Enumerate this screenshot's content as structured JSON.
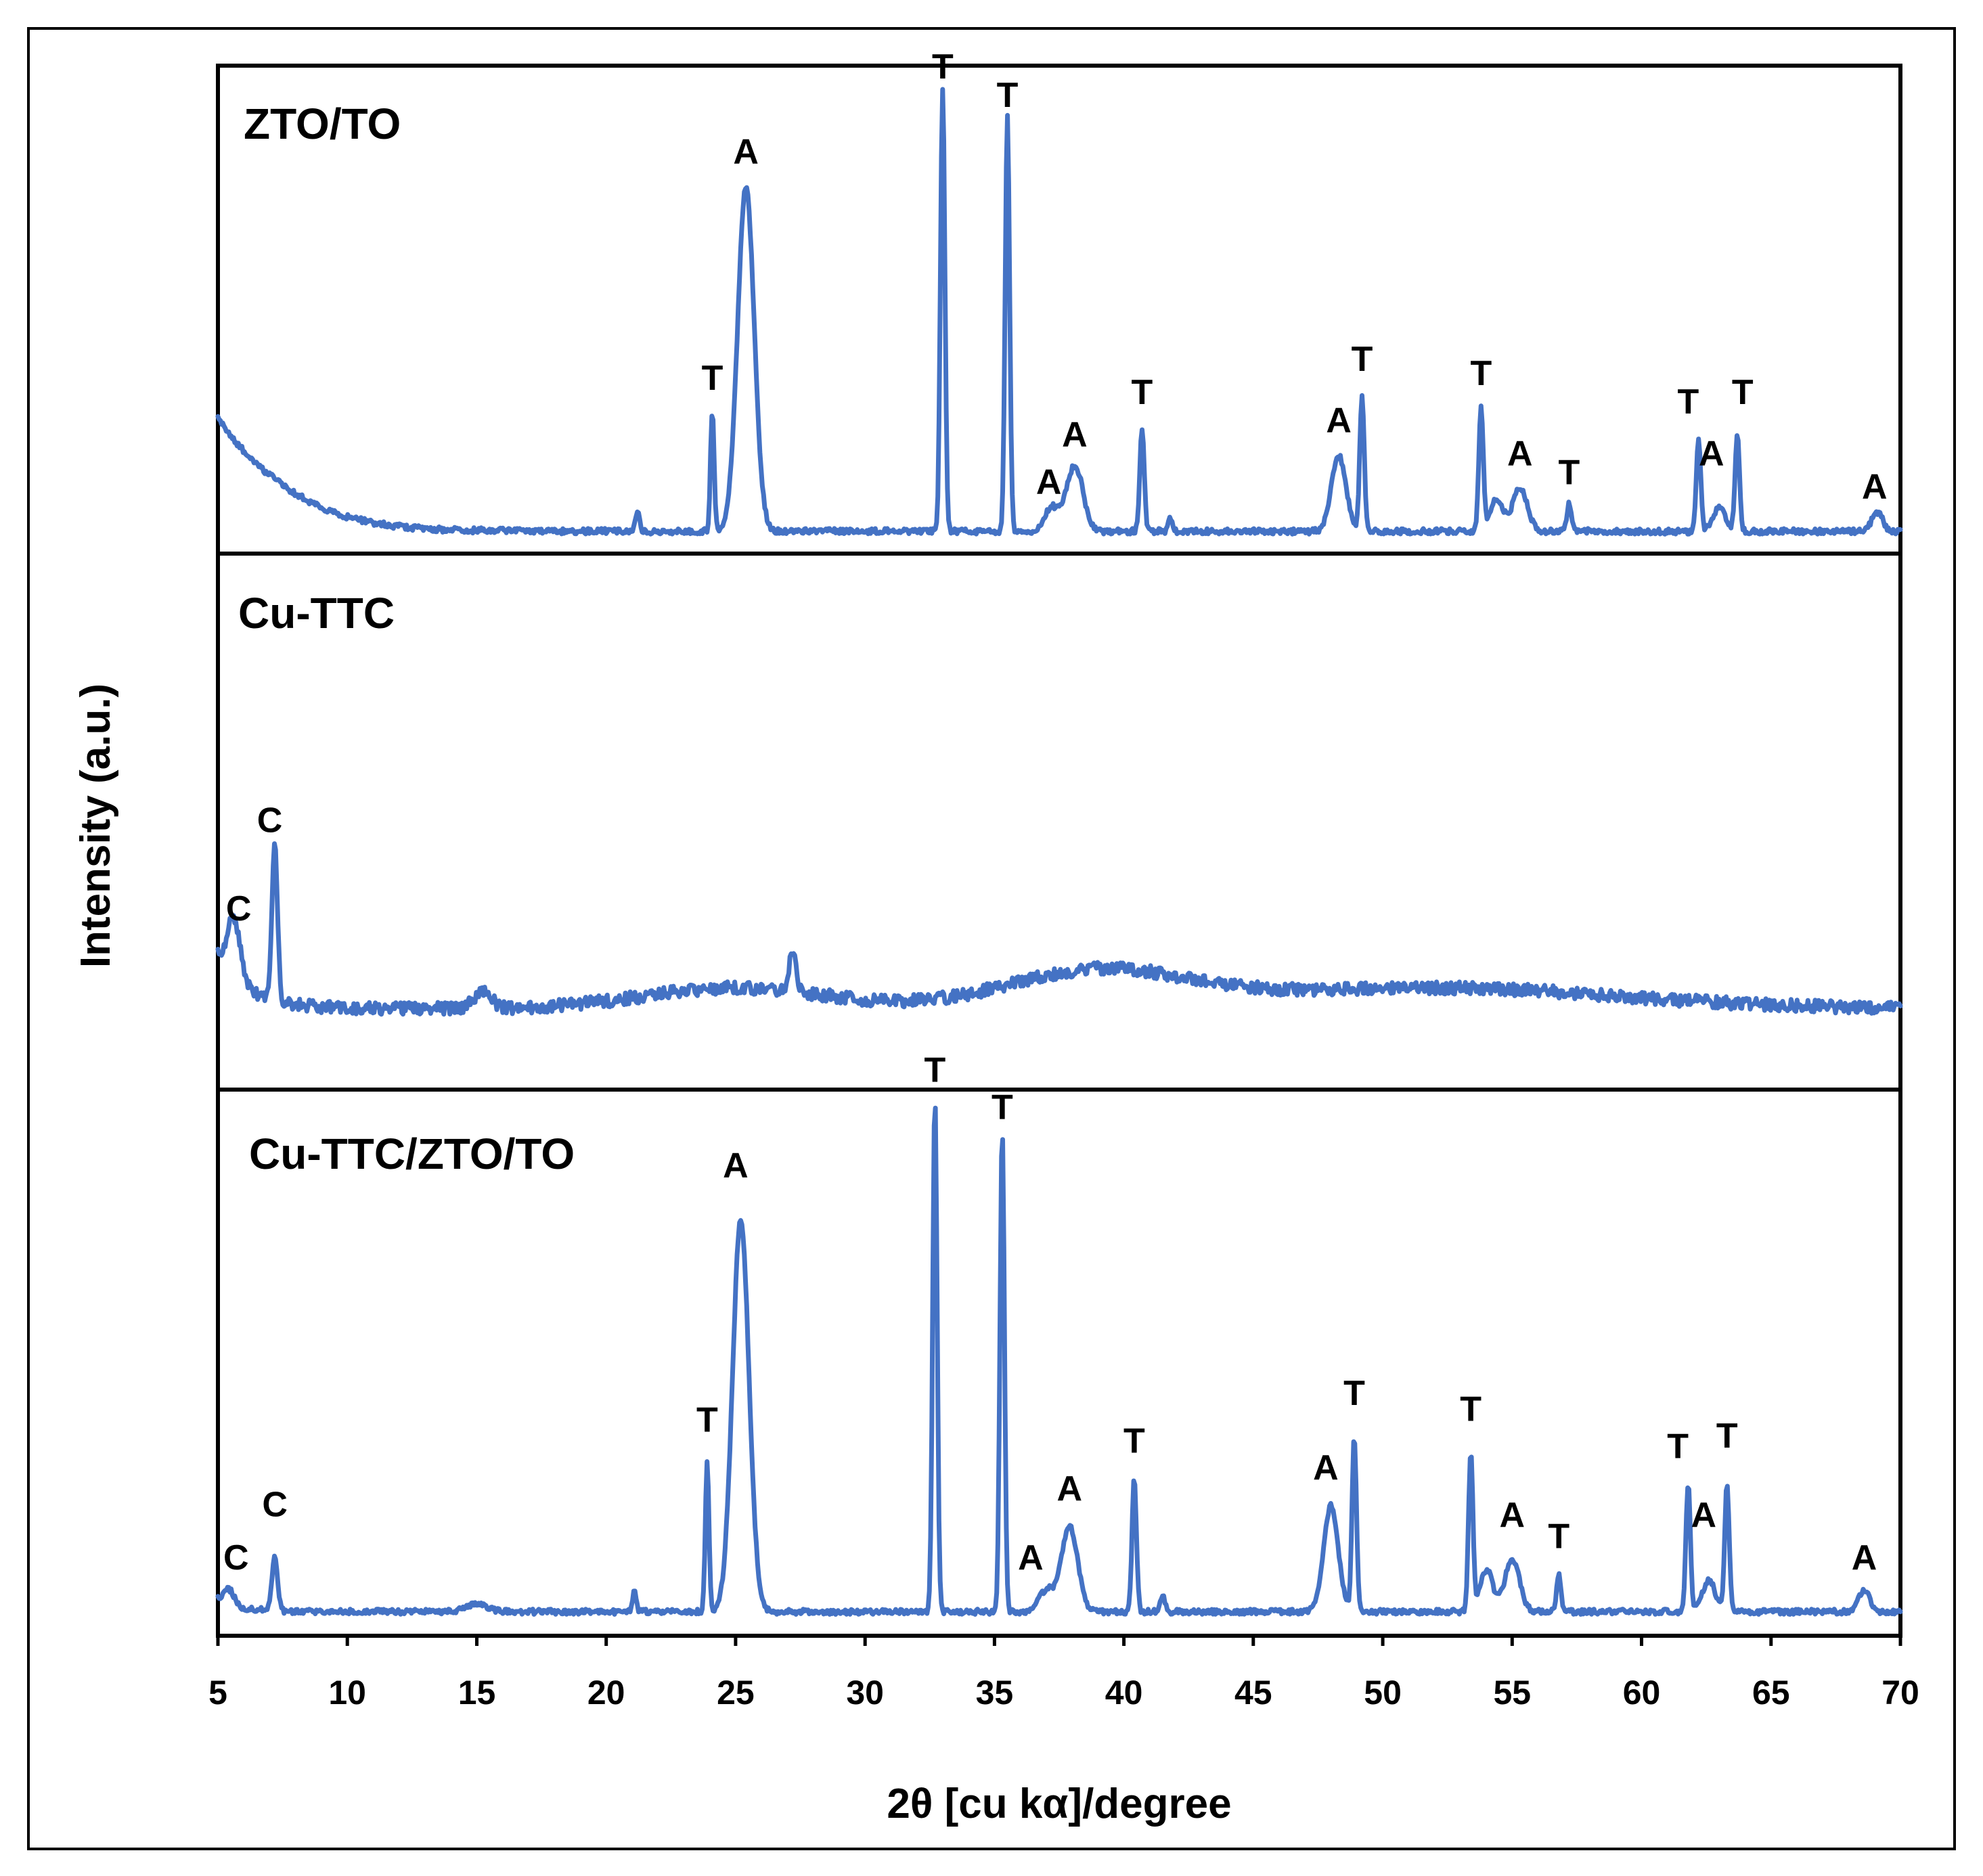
{
  "chart_data": {
    "type": "line",
    "title": "",
    "xlabel": "2θ [cu kα]/degree",
    "ylabel": "Intensity (a.u.)",
    "xlim": [
      5,
      70
    ],
    "x_ticks": [
      5,
      10,
      15,
      20,
      25,
      30,
      35,
      40,
      45,
      50,
      55,
      60,
      65,
      70
    ],
    "grid": false,
    "colors": {
      "trace": "#4472C4",
      "axes": "#000000",
      "background": "#ffffff"
    },
    "legend_marks": {
      "T": "peak marker T",
      "A": "peak marker A",
      "C": "peak marker C"
    },
    "series": [
      {
        "name": "ZTO/TO",
        "baseline": 0.03,
        "background": [
          {
            "type": "decay",
            "amp": 0.18,
            "width": 2.2
          },
          {
            "type": "bump",
            "center": 5.0,
            "amp": 0.06,
            "width": 4.0
          }
        ],
        "noise": 0.006,
        "peaks": [
          {
            "x": 21.2,
            "height": 0.04,
            "width": 0.12
          },
          {
            "x": 24.1,
            "height": 0.25,
            "width": 0.1
          },
          {
            "x": 25.4,
            "height": 0.73,
            "width": 0.45
          },
          {
            "x": 33.0,
            "height": 0.94,
            "width": 0.12
          },
          {
            "x": 35.5,
            "height": 0.88,
            "width": 0.12
          },
          {
            "x": 37.2,
            "height": 0.05,
            "width": 0.4
          },
          {
            "x": 38.1,
            "height": 0.14,
            "width": 0.45
          },
          {
            "x": 40.7,
            "height": 0.22,
            "width": 0.12
          },
          {
            "x": 41.8,
            "height": 0.03,
            "width": 0.12
          },
          {
            "x": 48.3,
            "height": 0.16,
            "width": 0.4
          },
          {
            "x": 49.2,
            "height": 0.29,
            "width": 0.12
          },
          {
            "x": 53.8,
            "height": 0.26,
            "width": 0.12
          },
          {
            "x": 54.4,
            "height": 0.07,
            "width": 0.35
          },
          {
            "x": 55.3,
            "height": 0.09,
            "width": 0.4
          },
          {
            "x": 57.2,
            "height": 0.06,
            "width": 0.12
          },
          {
            "x": 62.2,
            "height": 0.2,
            "width": 0.12
          },
          {
            "x": 63.0,
            "height": 0.05,
            "width": 0.35
          },
          {
            "x": 63.7,
            "height": 0.2,
            "width": 0.12
          },
          {
            "x": 69.1,
            "height": 0.04,
            "width": 0.3
          }
        ],
        "annotations": [
          {
            "text": "T",
            "x": 24.1,
            "y": 0.33
          },
          {
            "text": "A",
            "x": 25.4,
            "y": 0.81
          },
          {
            "text": "T",
            "x": 33.0,
            "y": 0.99
          },
          {
            "text": "T",
            "x": 35.5,
            "y": 0.93
          },
          {
            "text": "A",
            "x": 37.1,
            "y": 0.11
          },
          {
            "text": "A",
            "x": 38.1,
            "y": 0.21
          },
          {
            "text": "T",
            "x": 40.7,
            "y": 0.3
          },
          {
            "text": "A",
            "x": 48.3,
            "y": 0.24
          },
          {
            "text": "T",
            "x": 49.2,
            "y": 0.37
          },
          {
            "text": "T",
            "x": 53.8,
            "y": 0.34
          },
          {
            "text": "A",
            "x": 55.3,
            "y": 0.17
          },
          {
            "text": "T",
            "x": 57.2,
            "y": 0.13
          },
          {
            "text": "T",
            "x": 61.8,
            "y": 0.28
          },
          {
            "text": "A",
            "x": 62.7,
            "y": 0.17
          },
          {
            "text": "T",
            "x": 63.9,
            "y": 0.3
          },
          {
            "text": "A",
            "x": 69.0,
            "y": 0.1
          }
        ]
      },
      {
        "name": "Cu-TTC",
        "baseline": 0.14,
        "background": [
          {
            "type": "decay",
            "amp": 0.1,
            "width": 1.2
          },
          {
            "type": "bump",
            "center": 25.0,
            "amp": 0.04,
            "width": 5.0
          },
          {
            "type": "bump",
            "center": 39.0,
            "amp": 0.07,
            "width": 5.0
          },
          {
            "type": "bump",
            "center": 52.0,
            "amp": 0.04,
            "width": 10.0
          }
        ],
        "noise": 0.012,
        "peaks": [
          {
            "x": 5.6,
            "height": 0.12,
            "width": 0.35
          },
          {
            "x": 7.2,
            "height": 0.3,
            "width": 0.15
          },
          {
            "x": 15.2,
            "height": 0.03,
            "width": 0.5
          },
          {
            "x": 27.2,
            "height": 0.07,
            "width": 0.2
          }
        ],
        "annotations": [
          {
            "text": "C",
            "x": 5.8,
            "y": 0.31
          },
          {
            "text": "C",
            "x": 7.0,
            "y": 0.48
          }
        ]
      },
      {
        "name": "Cu-TTC/ZTO/TO",
        "baseline": 0.03,
        "background": [
          {
            "type": "decay",
            "amp": 0.02,
            "width": 1.0
          }
        ],
        "noise": 0.005,
        "peaks": [
          {
            "x": 5.4,
            "height": 0.03,
            "width": 0.3
          },
          {
            "x": 7.2,
            "height": 0.1,
            "width": 0.15
          },
          {
            "x": 15.0,
            "height": 0.015,
            "width": 0.6
          },
          {
            "x": 21.1,
            "height": 0.04,
            "width": 0.1
          },
          {
            "x": 23.9,
            "height": 0.28,
            "width": 0.1
          },
          {
            "x": 25.2,
            "height": 0.74,
            "width": 0.45
          },
          {
            "x": 32.7,
            "height": 0.97,
            "width": 0.12
          },
          {
            "x": 35.3,
            "height": 0.91,
            "width": 0.12
          },
          {
            "x": 37.0,
            "height": 0.04,
            "width": 0.4
          },
          {
            "x": 37.9,
            "height": 0.16,
            "width": 0.45
          },
          {
            "x": 40.4,
            "height": 0.25,
            "width": 0.12
          },
          {
            "x": 41.5,
            "height": 0.03,
            "width": 0.12
          },
          {
            "x": 48.0,
            "height": 0.2,
            "width": 0.4
          },
          {
            "x": 48.9,
            "height": 0.33,
            "width": 0.12
          },
          {
            "x": 53.4,
            "height": 0.3,
            "width": 0.12
          },
          {
            "x": 54.0,
            "height": 0.08,
            "width": 0.35
          },
          {
            "x": 55.0,
            "height": 0.1,
            "width": 0.4
          },
          {
            "x": 56.8,
            "height": 0.07,
            "width": 0.12
          },
          {
            "x": 61.8,
            "height": 0.24,
            "width": 0.12
          },
          {
            "x": 62.6,
            "height": 0.06,
            "width": 0.35
          },
          {
            "x": 63.3,
            "height": 0.24,
            "width": 0.12
          },
          {
            "x": 68.6,
            "height": 0.04,
            "width": 0.3
          }
        ],
        "annotations": [
          {
            "text": "C",
            "x": 5.7,
            "y": 0.11
          },
          {
            "text": "C",
            "x": 7.2,
            "y": 0.21
          },
          {
            "text": "T",
            "x": 23.9,
            "y": 0.37
          },
          {
            "text": "A",
            "x": 25.0,
            "y": 0.85
          },
          {
            "text": "T",
            "x": 32.7,
            "y": 1.03
          },
          {
            "text": "T",
            "x": 35.3,
            "y": 0.96
          },
          {
            "text": "A",
            "x": 36.4,
            "y": 0.11
          },
          {
            "text": "A",
            "x": 37.9,
            "y": 0.24
          },
          {
            "text": "T",
            "x": 40.4,
            "y": 0.33
          },
          {
            "text": "A",
            "x": 47.8,
            "y": 0.28
          },
          {
            "text": "T",
            "x": 48.9,
            "y": 0.42
          },
          {
            "text": "T",
            "x": 53.4,
            "y": 0.39
          },
          {
            "text": "A",
            "x": 55.0,
            "y": 0.19
          },
          {
            "text": "T",
            "x": 56.8,
            "y": 0.15
          },
          {
            "text": "T",
            "x": 61.4,
            "y": 0.32
          },
          {
            "text": "A",
            "x": 62.4,
            "y": 0.19
          },
          {
            "text": "T",
            "x": 63.3,
            "y": 0.34
          },
          {
            "text": "A",
            "x": 68.6,
            "y": 0.11
          }
        ]
      }
    ]
  }
}
